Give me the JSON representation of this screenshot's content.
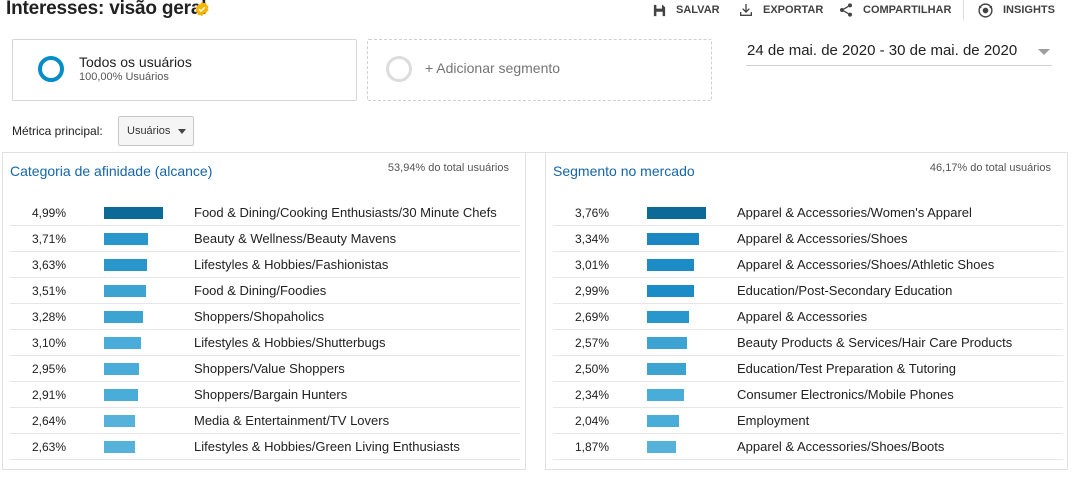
{
  "header": {
    "title": "Interesses: visão geral",
    "actions": [
      {
        "label": "SALVAR",
        "icon": "save-icon"
      },
      {
        "label": "EXPORTAR",
        "icon": "export-icon"
      },
      {
        "label": "COMPARTILHAR",
        "icon": "share-icon"
      },
      {
        "label": "INSIGHTS",
        "icon": "insights-icon"
      }
    ]
  },
  "segments": {
    "active": {
      "name": "Todos os usuários",
      "sub": "100,00% Usuários",
      "color": "#058dc7"
    },
    "add_label": "+ Adicionar segmento"
  },
  "date_range": "24 de mai. de 2020 - 30 de mai. de 2020",
  "metric": {
    "label": "Métrica principal:",
    "value": "Usuários"
  },
  "panels": {
    "left": {
      "title": "Categoria de afinidade (alcance)",
      "total": "53,94% do total usuários",
      "rows": [
        {
          "pct": "4,99%",
          "value": 4.99,
          "label": "Food & Dining/Cooking Enthusiasts/30 Minute Chefs"
        },
        {
          "pct": "3,71%",
          "value": 3.71,
          "label": "Beauty & Wellness/Beauty Mavens"
        },
        {
          "pct": "3,63%",
          "value": 3.63,
          "label": "Lifestyles & Hobbies/Fashionistas"
        },
        {
          "pct": "3,51%",
          "value": 3.51,
          "label": "Food & Dining/Foodies"
        },
        {
          "pct": "3,28%",
          "value": 3.28,
          "label": "Shoppers/Shopaholics"
        },
        {
          "pct": "3,10%",
          "value": 3.1,
          "label": "Lifestyles & Hobbies/Shutterbugs"
        },
        {
          "pct": "2,95%",
          "value": 2.95,
          "label": "Shoppers/Value Shoppers"
        },
        {
          "pct": "2,91%",
          "value": 2.91,
          "label": "Shoppers/Bargain Hunters"
        },
        {
          "pct": "2,64%",
          "value": 2.64,
          "label": "Media & Entertainment/TV Lovers"
        },
        {
          "pct": "2,63%",
          "value": 2.63,
          "label": "Lifestyles & Hobbies/Green Living Enthusiasts"
        }
      ]
    },
    "right": {
      "title": "Segmento no mercado",
      "total": "46,17% do total usuários",
      "rows": [
        {
          "pct": "3,76%",
          "value": 3.76,
          "label": "Apparel & Accessories/Women's Apparel"
        },
        {
          "pct": "3,34%",
          "value": 3.34,
          "label": "Apparel & Accessories/Shoes"
        },
        {
          "pct": "3,01%",
          "value": 3.01,
          "label": "Apparel & Accessories/Shoes/Athletic Shoes"
        },
        {
          "pct": "2,99%",
          "value": 2.99,
          "label": "Education/Post-Secondary Education"
        },
        {
          "pct": "2,69%",
          "value": 2.69,
          "label": "Apparel & Accessories"
        },
        {
          "pct": "2,57%",
          "value": 2.57,
          "label": "Beauty Products & Services/Hair Care Products"
        },
        {
          "pct": "2,50%",
          "value": 2.5,
          "label": "Education/Test Preparation & Tutoring"
        },
        {
          "pct": "2,34%",
          "value": 2.34,
          "label": "Consumer Electronics/Mobile Phones"
        },
        {
          "pct": "2,04%",
          "value": 2.04,
          "label": "Employment"
        },
        {
          "pct": "1,87%",
          "value": 1.87,
          "label": "Apparel & Accessories/Shoes/Boots"
        }
      ]
    }
  },
  "bar_colors": [
    "#0b6a96",
    "#1a86c2",
    "#1c8cc6",
    "#2a97cc",
    "#3ca3d3",
    "#4aacd8",
    "#56b2db"
  ]
}
